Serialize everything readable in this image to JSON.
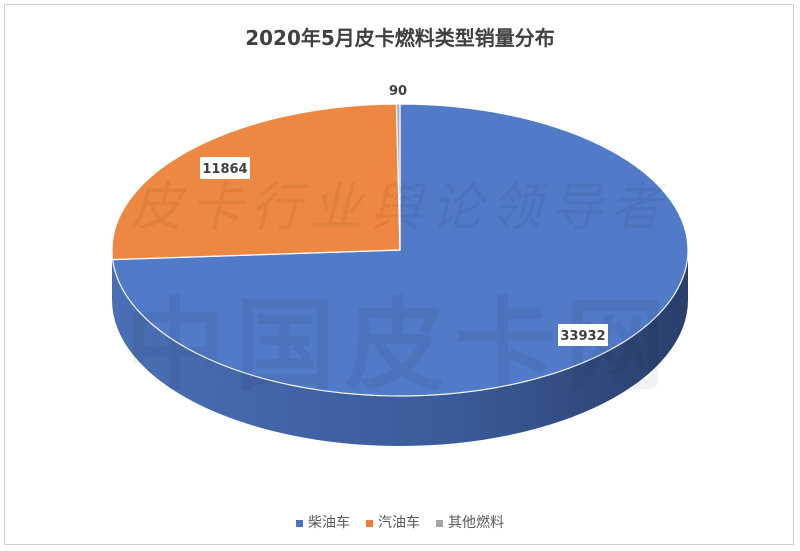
{
  "chart_data": {
    "type": "pie",
    "title": "2020年5月皮卡燃料类型销量分布",
    "categories": [
      "柴油车",
      "汽油车",
      "其他燃料"
    ],
    "values": [
      33932,
      11864,
      90
    ],
    "colors": [
      "#4472c4",
      "#ed7d31",
      "#a5a5a5"
    ],
    "style": "3d",
    "legend": "bottom",
    "data_labels": [
      "33932",
      "11864",
      "90"
    ]
  },
  "watermark": [
    "皮卡行业舆论领导者",
    "中国皮卡网"
  ]
}
